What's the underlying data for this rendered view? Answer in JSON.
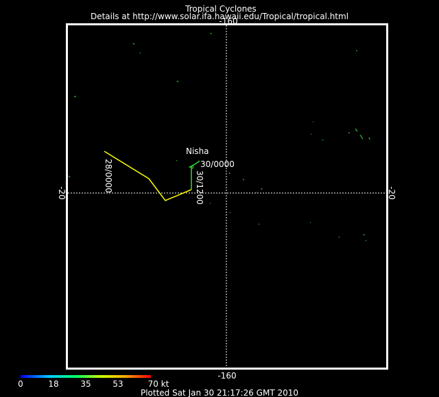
{
  "header": {
    "title": "Tropical Cyclones",
    "subtitle": "Details at http://www.solar.ifa.hawaii.edu/Tropical/tropical.html"
  },
  "map": {
    "lon_top": "-160",
    "lon_bottom": "-160",
    "lat_left": "-20",
    "lat_right": "-20",
    "storm": {
      "name": "Nisha",
      "labels": [
        "28/0000",
        "30/1200",
        "30/0000"
      ]
    }
  },
  "colorbar": {
    "labels": [
      "0",
      "18",
      "35",
      "53",
      "70 kt"
    ]
  },
  "footer": "Plotted Sat Jan 30 21:17:26 GMT 2010"
}
